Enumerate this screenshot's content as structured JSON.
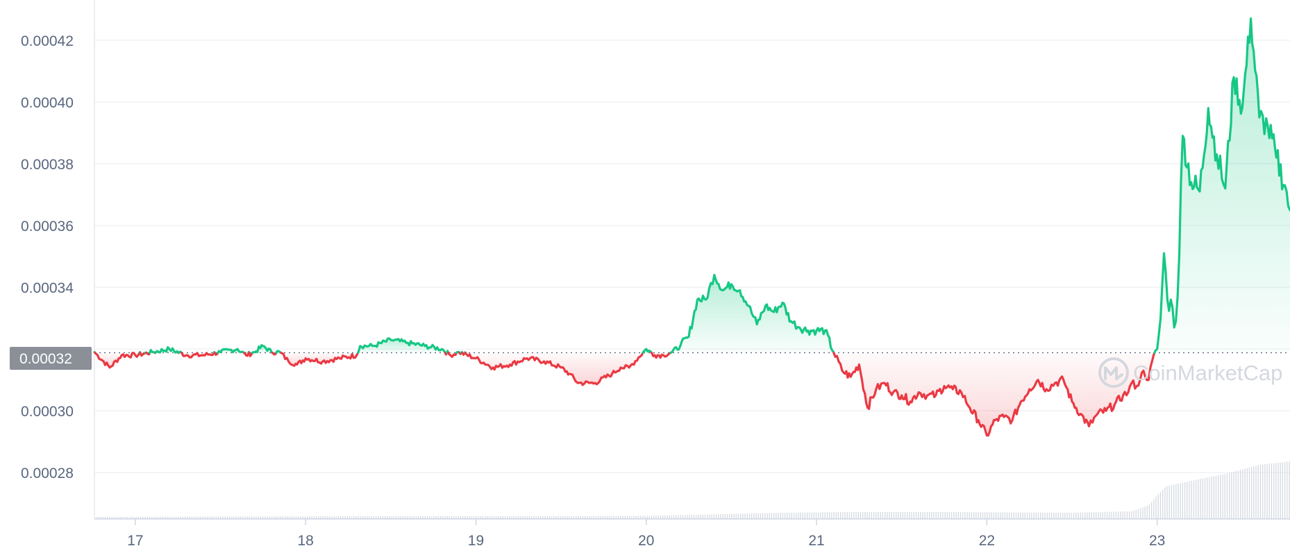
{
  "chart_data": {
    "type": "line",
    "title": "",
    "xlabel": "",
    "ylabel": "",
    "x_ticks": [
      "17",
      "18",
      "19",
      "20",
      "21",
      "22",
      "23"
    ],
    "y_ticks": [
      "0.00042",
      "0.00040",
      "0.00038",
      "0.00036",
      "0.00034",
      "0.00032",
      "0.00030",
      "0.00028"
    ],
    "ylim": [
      0.000265,
      0.000433
    ],
    "xlim": [
      16.76,
      23.78
    ],
    "reference_price": 0.0003188,
    "reference_label": "0.00032",
    "grid": true,
    "colors": {
      "above": "#16c784",
      "below": "#ea3943",
      "reference_label_bg": "#8a8f98"
    },
    "watermark": "CoinMarketCap",
    "series": [
      {
        "x": [
          16.76,
          16.85,
          16.92,
          17.0,
          17.1,
          17.2,
          17.3,
          17.4,
          17.5,
          17.6,
          17.65,
          17.7,
          17.75,
          17.8,
          17.85,
          17.9,
          17.95,
          18.0,
          18.1,
          18.2,
          18.3,
          18.32,
          18.4,
          18.5,
          18.6,
          18.7,
          18.8,
          18.85,
          18.9,
          19.0,
          19.1,
          19.2,
          19.3,
          19.4,
          19.5,
          19.55,
          19.6,
          19.7,
          19.8,
          19.85,
          19.9,
          20.0,
          20.05,
          20.1,
          20.15,
          20.2,
          20.25,
          20.3,
          20.35,
          20.4,
          20.45,
          20.5,
          20.55,
          20.6,
          20.65,
          20.7,
          20.75,
          20.8,
          20.85,
          20.9,
          20.95,
          21.0,
          21.05,
          21.1,
          21.15,
          21.2,
          21.25,
          21.3,
          21.35,
          21.4,
          21.45,
          21.5,
          21.55,
          21.6,
          21.65,
          21.7,
          21.75,
          21.8,
          21.85,
          21.9,
          21.95,
          22.0,
          22.05,
          22.1,
          22.15,
          22.2,
          22.25,
          22.3,
          22.35,
          22.4,
          22.45,
          22.5,
          22.55,
          22.6,
          22.65,
          22.7,
          22.75,
          22.8,
          22.83,
          22.85,
          22.88,
          22.9,
          22.92,
          22.95,
          22.97,
          23.0,
          23.02,
          23.04,
          23.06,
          23.08,
          23.1,
          23.12,
          23.15,
          23.2,
          23.25,
          23.3,
          23.35,
          23.4,
          23.45,
          23.5,
          23.55,
          23.6,
          23.65,
          23.7,
          23.75,
          23.78
        ],
        "values": [
          0.000319,
          0.000314,
          0.000318,
          0.000318,
          0.000319,
          0.00032,
          0.000318,
          0.000318,
          0.000319,
          0.00032,
          0.000318,
          0.000319,
          0.000321,
          0.000319,
          0.000319,
          0.000316,
          0.000315,
          0.000317,
          0.000316,
          0.000317,
          0.000318,
          0.000321,
          0.000321,
          0.000323,
          0.000322,
          0.000321,
          0.00032,
          0.000318,
          0.000319,
          0.000317,
          0.000314,
          0.000315,
          0.000317,
          0.000316,
          0.000314,
          0.000312,
          0.000309,
          0.000309,
          0.000312,
          0.000314,
          0.000314,
          0.00032,
          0.000318,
          0.000318,
          0.000319,
          0.000321,
          0.000324,
          0.000336,
          0.000336,
          0.000344,
          0.000339,
          0.000341,
          0.000339,
          0.000334,
          0.000328,
          0.000334,
          0.000332,
          0.000335,
          0.000329,
          0.000327,
          0.000326,
          0.000326,
          0.000326,
          0.000319,
          0.000313,
          0.000311,
          0.000315,
          0.000301,
          0.000307,
          0.000309,
          0.000306,
          0.000305,
          0.000303,
          0.000306,
          0.000305,
          0.000305,
          0.000308,
          0.000307,
          0.000306,
          0.000301,
          0.000297,
          0.000292,
          0.000297,
          0.000298,
          0.000297,
          0.000303,
          0.000307,
          0.00031,
          0.000307,
          0.000309,
          0.00031,
          0.000303,
          0.000299,
          0.000295,
          0.000299,
          0.0003,
          0.000302,
          0.000305,
          0.000306,
          0.000309,
          0.000308,
          0.00031,
          0.000313,
          0.00031,
          0.000316,
          0.00032,
          0.00033,
          0.000351,
          0.000336,
          0.000336,
          0.000327,
          0.000337,
          0.000389,
          0.000374,
          0.000371,
          0.000398,
          0.000383,
          0.000372,
          0.000408,
          0.000398,
          0.000427,
          0.000395,
          0.000392,
          0.000382,
          0.000373,
          0.000365
        ]
      }
    ],
    "volume": {
      "x": [
        16.76,
        17.5,
        18.5,
        19.5,
        20.0,
        20.3,
        20.8,
        21.2,
        21.8,
        22.5,
        22.85,
        22.95,
        23.0,
        23.05,
        23.2,
        23.4,
        23.6,
        23.78
      ],
      "values": [
        3,
        3.5,
        4,
        4,
        4.5,
        6,
        9,
        10,
        10,
        9,
        11,
        20,
        35,
        47,
        55,
        65,
        78,
        83
      ]
    }
  }
}
